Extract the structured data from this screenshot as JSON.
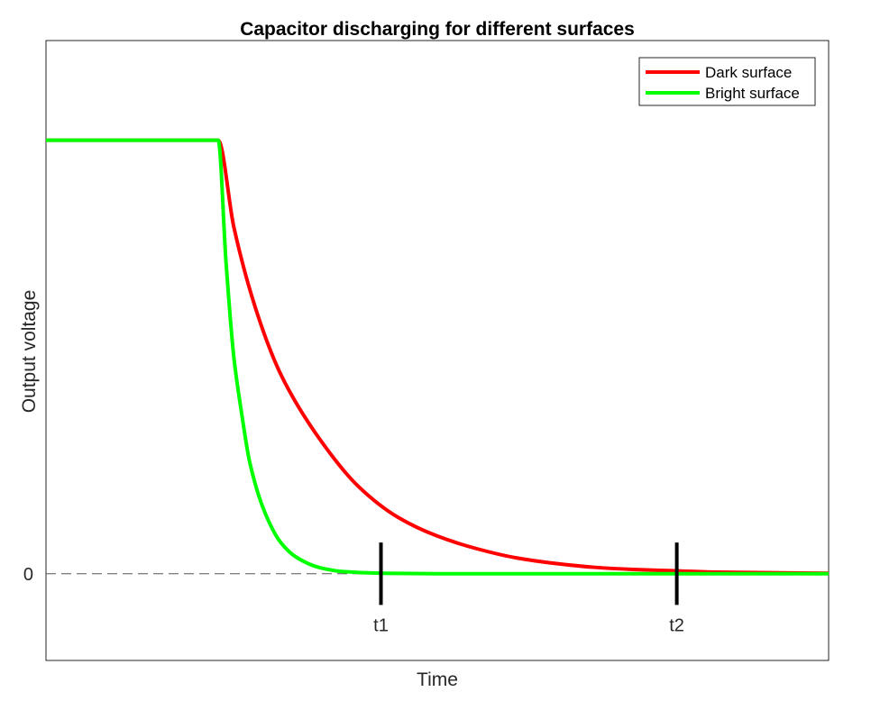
{
  "chart_data": {
    "type": "line",
    "title": "Capacitor discharging for different surfaces",
    "xlabel": "Time",
    "ylabel": "Output voltage",
    "xlim": [
      0,
      10
    ],
    "ylim": [
      -0.2,
      1.23
    ],
    "ytick_labels": [
      {
        "value": 0,
        "label": "0"
      }
    ],
    "grid": false,
    "legend_position": "top-right",
    "series": [
      {
        "name": "Dark surface",
        "color": "#ff0000",
        "x": [
          0,
          2.2,
          2.4,
          2.7,
          3.0,
          3.5,
          4.0,
          4.5,
          5.0,
          5.5,
          6.0,
          6.5,
          7.0,
          7.5,
          8.0,
          8.5,
          9.0,
          10.0
        ],
        "y": [
          1.0,
          1.0,
          0.8,
          0.6,
          0.46,
          0.31,
          0.2,
          0.13,
          0.087,
          0.058,
          0.037,
          0.024,
          0.015,
          0.01,
          0.007,
          0.004,
          0.003,
          0.001
        ]
      },
      {
        "name": "Bright surface",
        "color": "#00ff00",
        "x": [
          0,
          2.2,
          2.3,
          2.4,
          2.5,
          2.6,
          2.8,
          3.0,
          3.2,
          3.5,
          3.8,
          4.3,
          5.0,
          10.0
        ],
        "y": [
          1.0,
          1.0,
          0.72,
          0.5,
          0.37,
          0.26,
          0.14,
          0.072,
          0.038,
          0.014,
          0.005,
          0.001,
          0.0,
          0.0
        ]
      }
    ],
    "reference_lines": [
      {
        "y": 0,
        "style": "dashed",
        "color": "#555555"
      }
    ],
    "markers": [
      {
        "label": "t1",
        "x": 4.28,
        "y_range": [
          -0.072,
          0.072
        ]
      },
      {
        "label": "t2",
        "x": 8.06,
        "y_range": [
          -0.072,
          0.072
        ]
      }
    ]
  }
}
